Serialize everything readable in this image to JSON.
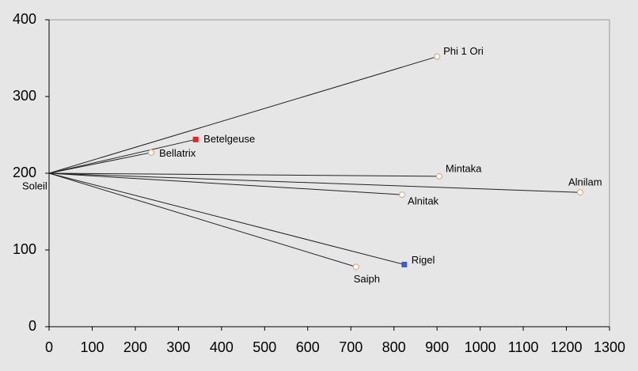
{
  "chart_data": {
    "type": "scatter",
    "labels": [
      "Soleil",
      "Phi 1 Ori",
      "Betelgeuse",
      "Bellatrix",
      "Mintaka",
      "Alnilam",
      "Alnitak",
      "Rigel",
      "Saiph"
    ],
    "x": [
      0,
      900,
      340,
      237,
      905,
      1232,
      819,
      824,
      712
    ],
    "values": [
      200,
      352,
      244,
      227,
      196,
      175,
      172,
      81,
      78
    ],
    "colors": [
      "#ffffff",
      "#ffffff",
      "#e8202a",
      "#ffffff",
      "#ffffff",
      "#ffffff",
      "#ffffff",
      "#3a5bd0",
      "#ffffff"
    ],
    "xlim": [
      0,
      1300
    ],
    "xticks": [
      0,
      100,
      200,
      300,
      400,
      500,
      600,
      700,
      800,
      900,
      1000,
      1100,
      1200,
      1300
    ],
    "ylim": [
      0,
      400
    ],
    "yticks": [
      0,
      100,
      200,
      300,
      400
    ]
  }
}
